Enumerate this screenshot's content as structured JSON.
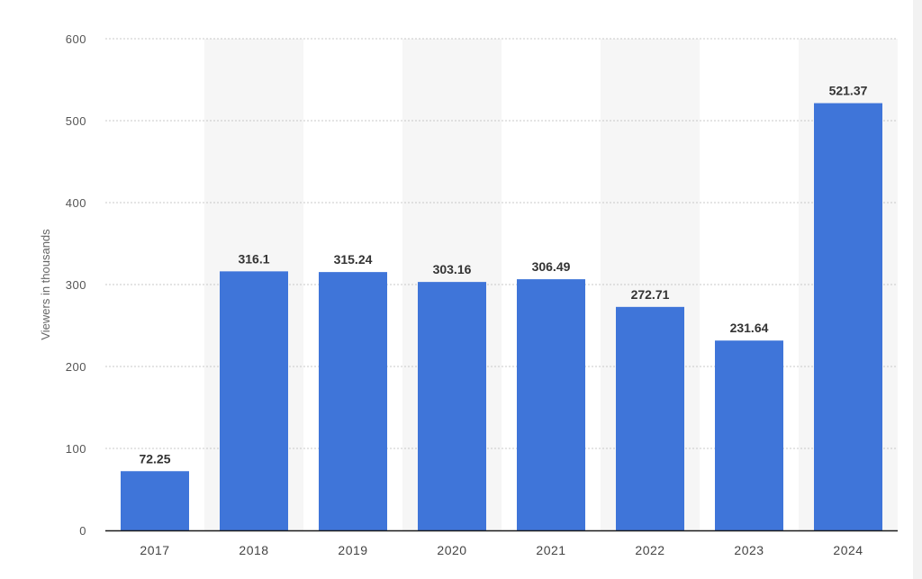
{
  "colors": {
    "bar": "#3f75d9",
    "grid": "#c8c8c8",
    "alt_band": "#f6f6f6",
    "baseline": "#1a1a1a"
  },
  "chart_data": {
    "type": "bar",
    "categories": [
      "2017",
      "2018",
      "2019",
      "2020",
      "2021",
      "2022",
      "2023",
      "2024"
    ],
    "values": [
      72.25,
      316.1,
      315.24,
      303.16,
      306.49,
      272.71,
      231.64,
      521.37
    ],
    "value_labels": [
      "72.25",
      "316.1",
      "315.24",
      "303.16",
      "306.49",
      "272.71",
      "231.64",
      "521.37"
    ],
    "title": "",
    "xlabel": "",
    "ylabel": "Viewers in thousands",
    "ylim": [
      0,
      600
    ],
    "yticks": [
      0,
      100,
      200,
      300,
      400,
      500,
      600
    ],
    "grid": true,
    "legend": "none"
  }
}
